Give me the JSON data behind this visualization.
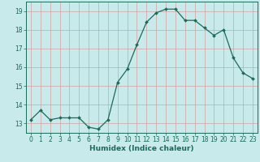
{
  "x": [
    0,
    1,
    2,
    3,
    4,
    5,
    6,
    7,
    8,
    9,
    10,
    11,
    12,
    13,
    14,
    15,
    16,
    17,
    18,
    19,
    20,
    21,
    22,
    23
  ],
  "y": [
    13.2,
    13.7,
    13.2,
    13.3,
    13.3,
    13.3,
    12.8,
    12.7,
    13.2,
    15.2,
    15.9,
    17.2,
    18.4,
    18.9,
    19.1,
    19.1,
    18.5,
    18.5,
    18.1,
    17.7,
    18.0,
    16.5,
    15.7,
    15.4
  ],
  "line_color": "#1a6b5a",
  "marker": "D",
  "marker_size": 2.0,
  "bg_color": "#c8eaea",
  "grid_color": "#d4a0a0",
  "xlabel": "Humidex (Indice chaleur)",
  "xlim": [
    -0.5,
    23.5
  ],
  "ylim": [
    12.5,
    19.5
  ],
  "yticks": [
    13,
    14,
    15,
    16,
    17,
    18,
    19
  ],
  "xticks": [
    0,
    1,
    2,
    3,
    4,
    5,
    6,
    7,
    8,
    9,
    10,
    11,
    12,
    13,
    14,
    15,
    16,
    17,
    18,
    19,
    20,
    21,
    22,
    23
  ],
  "tick_label_fontsize": 5.5,
  "xlabel_fontsize": 6.5,
  "linewidth": 0.9
}
